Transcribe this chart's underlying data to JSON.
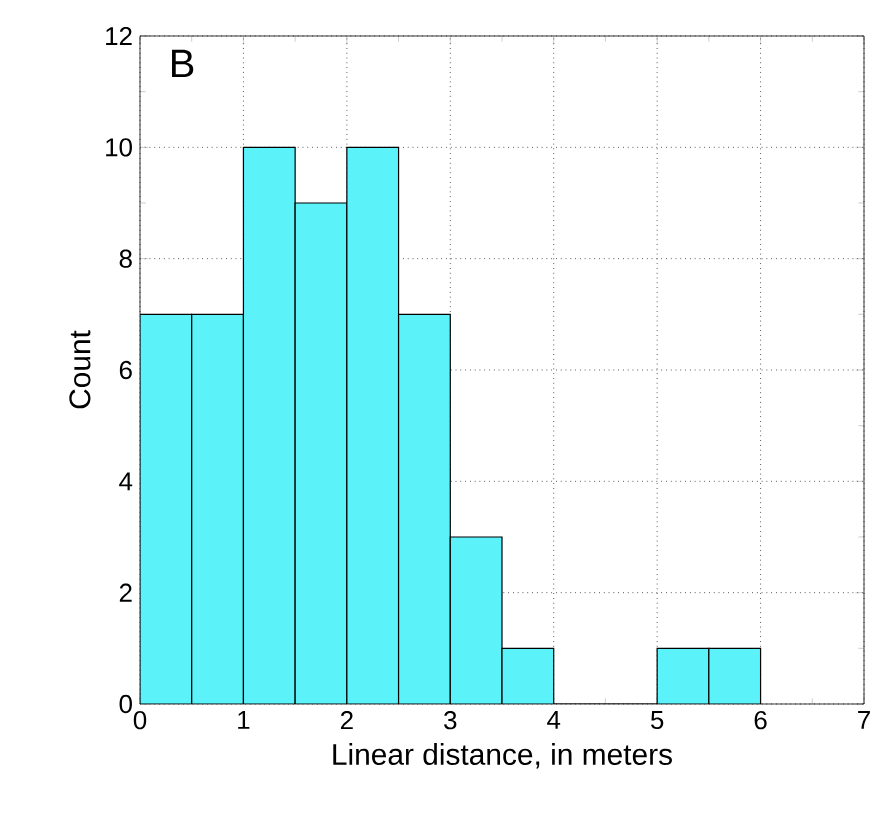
{
  "chart_data": {
    "type": "histogram",
    "xlabel": "Linear distance, in meters",
    "ylabel": "Count",
    "annotations": [
      "B"
    ],
    "bins": [
      0,
      0.5,
      1,
      1.5,
      2,
      2.5,
      3,
      3.5,
      4,
      4.5,
      5,
      5.5,
      6
    ],
    "values": [
      7,
      7,
      10,
      9,
      10,
      7,
      3,
      1,
      0,
      0,
      1,
      1
    ],
    "color": "#5cf2fa",
    "xlim": [
      0,
      7
    ],
    "ylim": [
      0,
      12
    ],
    "xticks": [
      0,
      1,
      2,
      3,
      4,
      5,
      6,
      7
    ],
    "yticks": [
      0,
      2,
      4,
      6,
      8,
      10,
      12
    ],
    "grid": true
  }
}
